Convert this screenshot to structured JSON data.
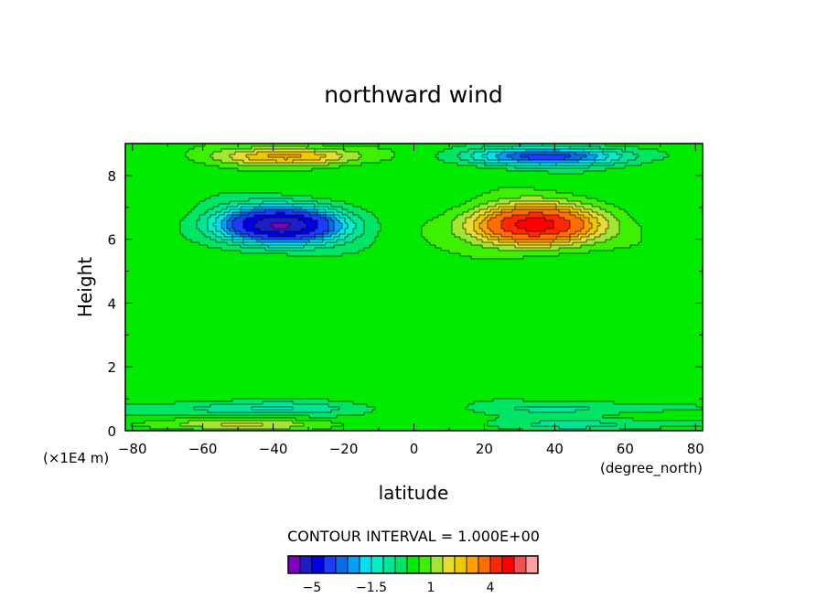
{
  "chart_data": {
    "type": "heatmap",
    "title": "northward wind",
    "xlabel": "latitude",
    "xunit": "(degree_north)",
    "ylabel": "Height",
    "yunit": "(×1E4 m)",
    "xlim": [
      -82,
      82
    ],
    "ylim": [
      0,
      9
    ],
    "xticks": [
      -80,
      -60,
      -40,
      -20,
      0,
      20,
      40,
      60,
      80
    ],
    "xtick_labels": [
      "−80",
      "−60",
      "−40",
      "−20",
      "0",
      "20",
      "40",
      "60",
      "80"
    ],
    "yticks": [
      0,
      2,
      4,
      6,
      8
    ],
    "ytick_labels": [
      "0",
      "2",
      "4",
      "6",
      "8"
    ],
    "contour_interval_text": "CONTOUR INTERVAL = 1.000E+00",
    "legend_labels": [
      {
        "value": -5,
        "text": "−5"
      },
      {
        "value": -1.5,
        "text": "−1.5"
      },
      {
        "value": 1,
        "text": "1"
      },
      {
        "value": 4,
        "text": "4"
      }
    ],
    "levels": [
      -7,
      -6,
      -5,
      -4,
      -3,
      -2.5,
      -2,
      -1.5,
      -1,
      -0.5,
      0,
      0.5,
      1,
      1.5,
      2,
      2.5,
      3,
      4,
      5,
      6,
      7,
      8
    ],
    "colors": [
      "#7f00bf",
      "#1e1ec8",
      "#0000e6",
      "#1e3cff",
      "#0a6be6",
      "#00a0ff",
      "#00e1f0",
      "#00f0c8",
      "#00e696",
      "#00e664",
      "#00eb00",
      "#3cf000",
      "#a0e632",
      "#e6dc32",
      "#f0c800",
      "#ffa000",
      "#ff6e00",
      "#ff2800",
      "#ff0000",
      "#f05050",
      "#ffa0a0"
    ],
    "features": [
      {
        "lat": -38,
        "height": 6.45,
        "amp": -6.3,
        "sx": 17,
        "sy": 0.55
      },
      {
        "lat": 34,
        "height": 6.45,
        "amp": 5.3,
        "sx": 17,
        "sy": 0.6
      },
      {
        "lat": -35,
        "height": 8.6,
        "amp": 2.4,
        "sx": 20,
        "sy": 0.28
      },
      {
        "lat": 38,
        "height": 8.6,
        "amp": -3.5,
        "sx": 22,
        "sy": 0.28
      },
      {
        "lat": -45,
        "height": 0.7,
        "amp": -1.3,
        "sx": 28,
        "sy": 0.22
      },
      {
        "lat": 45,
        "height": 0.7,
        "amp": -0.9,
        "sx": 25,
        "sy": 0.22
      },
      {
        "lat": -50,
        "height": 0.2,
        "amp": 1.2,
        "sx": 28,
        "sy": 0.18
      },
      {
        "lat": 50,
        "height": 0.2,
        "amp": -0.9,
        "sx": 28,
        "sy": 0.18
      }
    ]
  }
}
